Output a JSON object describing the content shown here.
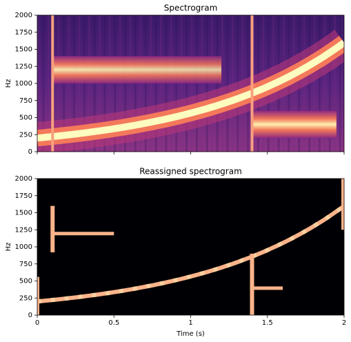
{
  "chart_data": [
    {
      "type": "spectrogram",
      "title": "Spectrogram",
      "ylabel": "Hz",
      "xlim": [
        0,
        2
      ],
      "ylim": [
        0,
        2000
      ],
      "xticks": [
        0,
        0.5,
        1,
        1.5,
        2
      ],
      "show_xtick_labels": false,
      "yticks": [
        0,
        250,
        500,
        750,
        1000,
        1250,
        1500,
        1750,
        2000
      ],
      "colormap": "magma"
    },
    {
      "type": "reassigned",
      "title": "Reassigned spectrogram",
      "ylabel": "Hz",
      "xlabel": "Time (s)",
      "xlim": [
        0,
        2
      ],
      "ylim": [
        0,
        2000
      ],
      "xticks": [
        0,
        0.5,
        1,
        1.5,
        2
      ],
      "show_xtick_labels": true,
      "yticks": [
        0,
        250,
        500,
        750,
        1000,
        1250,
        1500,
        1750,
        2000
      ],
      "colormap": "magma"
    }
  ]
}
